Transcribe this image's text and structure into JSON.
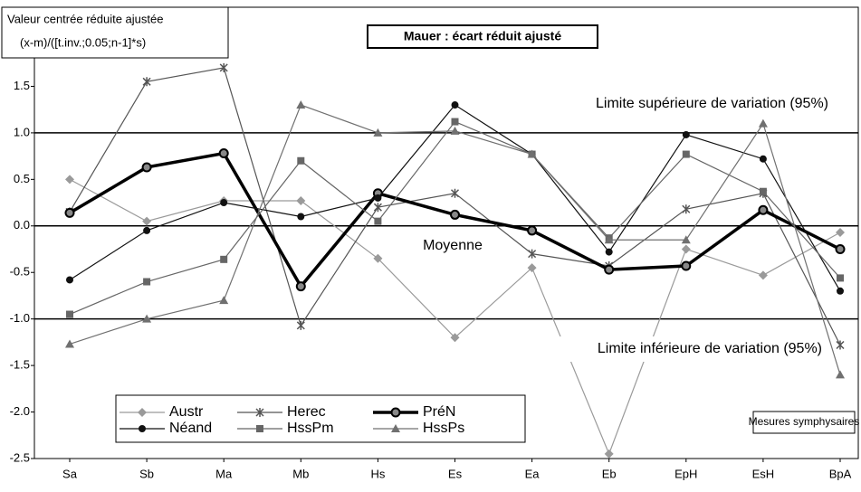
{
  "chart_data": {
    "type": "line",
    "title": "Mauer : écart réduit ajusté",
    "y_label": [
      "Valeur centrée réduite ajustée",
      "(x-m)/([t.inv.;0.05;n-1]*s)"
    ],
    "annotations": [
      "Limite supérieure de variation (95%)",
      "Moyenne",
      "Limite inférieure de variation (95%)",
      "Mesures symphysaires"
    ],
    "categories": [
      "Sa",
      "Sb",
      "Ma",
      "Mb",
      "Hs",
      "Es",
      "Ea",
      "Eb",
      "EpH",
      "EsH",
      "BpA"
    ],
    "ylim": [
      -2.5,
      2.35
    ],
    "yticks": [
      {
        "value": -2.5,
        "label": "-2.5"
      },
      {
        "value": -2.0,
        "label": "-2.0"
      },
      {
        "value": -1.5,
        "label": "-1.5"
      },
      {
        "value": -1.0,
        "label": "-1.0"
      },
      {
        "value": -0.5,
        "label": "-0.5"
      },
      {
        "value": 0,
        "label": "0.0"
      },
      0.5,
      {
        "value": 1,
        "label": "1.0"
      },
      1.5
    ],
    "reference_lines": [
      1,
      0,
      -1
    ],
    "series": [
      {
        "name": "Austr",
        "color": "#9a9a9a",
        "marker": "diamond",
        "values": [
          0.5,
          0.05,
          0.27,
          0.27,
          -0.35,
          -1.2,
          -0.45,
          -2.45,
          -0.25,
          -0.53,
          -0.07
        ]
      },
      {
        "name": "Herec",
        "color": "#555555",
        "marker": "asterisk",
        "values": [
          0.15,
          1.55,
          1.7,
          -1.07,
          0.2,
          0.35,
          -0.3,
          -0.43,
          0.18,
          0.35,
          -1.28
        ]
      },
      {
        "name": "PréN",
        "color": "#000000",
        "marker": "ring",
        "values": [
          0.14,
          0.63,
          0.78,
          -0.65,
          0.35,
          0.12,
          -0.05,
          -0.47,
          -0.43,
          0.17,
          -0.25
        ]
      },
      {
        "name": "Néand",
        "color": "#111111",
        "marker": "circle",
        "values": [
          -0.58,
          -0.05,
          0.25,
          0.1,
          0.3,
          1.3,
          0.77,
          -0.28,
          0.98,
          0.72,
          -0.7
        ]
      },
      {
        "name": "HssPm",
        "color": "#666666",
        "marker": "square",
        "values": [
          -0.95,
          -0.6,
          -0.36,
          0.7,
          0.05,
          1.12,
          0.77,
          -0.13,
          0.77,
          0.37,
          -0.56
        ]
      },
      {
        "name": "HssPs",
        "color": "#707070",
        "marker": "triangle",
        "values": [
          -1.27,
          -1.0,
          -0.8,
          1.3,
          1.0,
          1.02,
          0.77,
          -0.15,
          -0.15,
          1.1,
          -1.6
        ]
      }
    ]
  }
}
